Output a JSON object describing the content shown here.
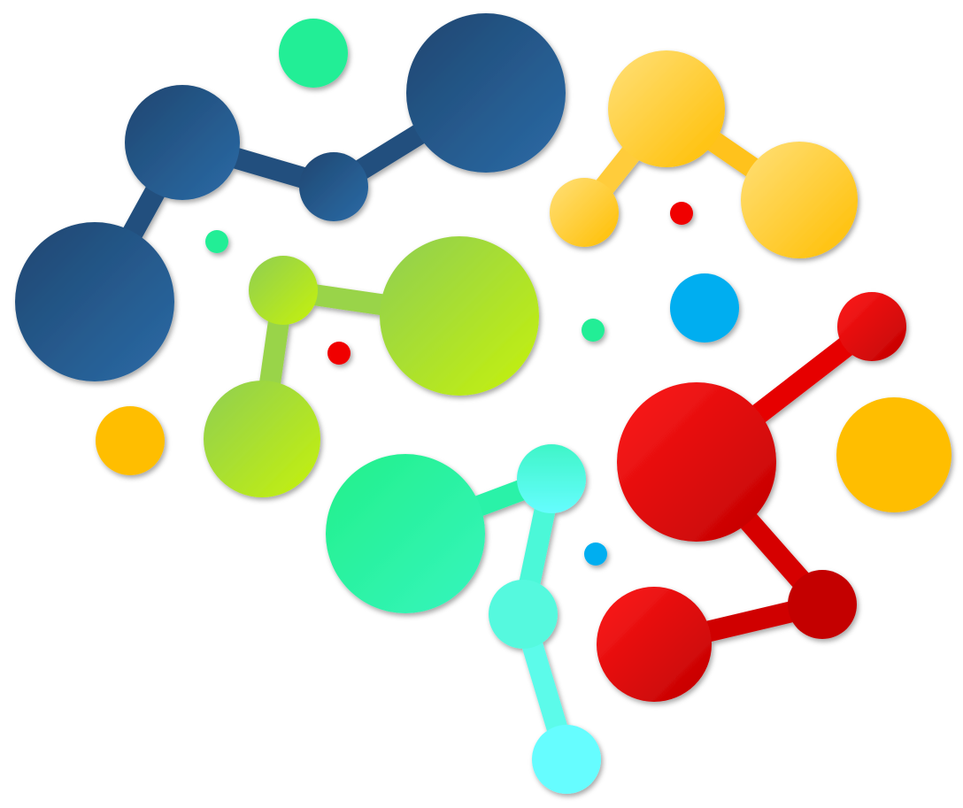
{
  "palette": {
    "navy": [
      "#1f4670",
      "#2b6ba6"
    ],
    "yellow": [
      "#ffe07a",
      "#ffbe00"
    ],
    "lime": [
      "#8fce52",
      "#c6f20c"
    ],
    "mint": [
      "#23f08a",
      "#35f5be"
    ],
    "aqua": [
      "#3ff5c8",
      "#66fdff"
    ],
    "red": [
      "#ff1a1a",
      "#c00000"
    ],
    "sky": "#00aef0",
    "orange": "#ffbe00",
    "dot_red": "#f00000",
    "dot_green": "#22ee96"
  },
  "icon": "molecule-brain-logo",
  "clusters": [
    "navy",
    "yellow",
    "lime",
    "mint-aqua",
    "red"
  ]
}
